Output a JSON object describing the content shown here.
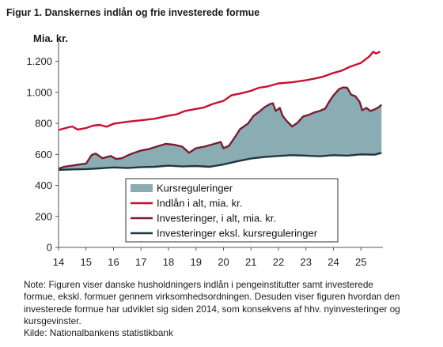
{
  "figure_title": "Figur 1. Danskernes indlån og frie investerede formue",
  "note": "Note: Figuren viser danske husholdningers indlån i pengeinstitutter samt investerede formue, ekskl. formuer gennem virksomhedsordningen. Desuden viser figuren hvordan den investerede formue har udviklet sig siden 2014, som konsekvens af hhv. nyinvesteringer og kursgevinster.",
  "source": "Kilde: Nationalbankens statistikbank",
  "colors": {
    "area": "#8aadb3",
    "deposits": "#c8102e",
    "investments_total": "#7b1d33",
    "investments_ex": "#1f3640",
    "axis": "#555555"
  },
  "chart_data": {
    "type": "line",
    "ylabel": "Mia. kr.",
    "xlabel": "",
    "ylim": [
      0,
      1300
    ],
    "yticks": [
      0,
      200,
      400,
      600,
      800,
      1000,
      1200
    ],
    "ytick_labels": [
      "0",
      "200",
      "400",
      "600",
      "800",
      "1.000",
      "1.200"
    ],
    "xlim": [
      14,
      25.8
    ],
    "xticks": [
      14,
      15,
      16,
      17,
      18,
      19,
      20,
      21,
      22,
      23,
      24,
      25
    ],
    "xtick_labels": [
      "14",
      "15",
      "16",
      "17",
      "18",
      "19",
      "20",
      "21",
      "22",
      "23",
      "24",
      "25"
    ],
    "grid": false,
    "legend_position": "center-bottom",
    "legend": [
      {
        "label": "Kursreguleringer",
        "kind": "area",
        "series": "area"
      },
      {
        "label": "Indlån i alt, mia. kr.",
        "kind": "line",
        "series": "deposits"
      },
      {
        "label": "Investeringer, i alt, mia. kr.",
        "kind": "line",
        "series": "investments_total"
      },
      {
        "label": "Investeringer eksl. kursreguleringer",
        "kind": "line",
        "series": "investments_ex"
      }
    ],
    "series": [
      {
        "key": "deposits",
        "name": "Indlån i alt, mia. kr.",
        "points": [
          [
            14.0,
            757
          ],
          [
            14.3,
            772
          ],
          [
            14.5,
            780
          ],
          [
            14.7,
            760
          ],
          [
            15.0,
            770
          ],
          [
            15.25,
            785
          ],
          [
            15.5,
            790
          ],
          [
            15.75,
            778
          ],
          [
            16.0,
            798
          ],
          [
            16.3,
            805
          ],
          [
            16.5,
            810
          ],
          [
            16.75,
            815
          ],
          [
            17.0,
            820
          ],
          [
            17.5,
            830
          ],
          [
            18.0,
            850
          ],
          [
            18.3,
            858
          ],
          [
            18.6,
            880
          ],
          [
            19.0,
            893
          ],
          [
            19.3,
            903
          ],
          [
            19.6,
            925
          ],
          [
            20.0,
            945
          ],
          [
            20.3,
            982
          ],
          [
            20.6,
            992
          ],
          [
            21.0,
            1010
          ],
          [
            21.3,
            1030
          ],
          [
            21.6,
            1038
          ],
          [
            22.0,
            1058
          ],
          [
            22.5,
            1065
          ],
          [
            23.0,
            1078
          ],
          [
            23.3,
            1088
          ],
          [
            23.6,
            1100
          ],
          [
            24.0,
            1125
          ],
          [
            24.3,
            1140
          ],
          [
            24.6,
            1165
          ],
          [
            25.0,
            1190
          ],
          [
            25.3,
            1230
          ],
          [
            25.45,
            1262
          ],
          [
            25.55,
            1250
          ],
          [
            25.7,
            1263
          ]
        ]
      },
      {
        "key": "investments_total",
        "name": "Investeringer, i alt, mia. kr.",
        "points": [
          [
            14.0,
            508
          ],
          [
            14.2,
            520
          ],
          [
            14.5,
            528
          ],
          [
            14.75,
            535
          ],
          [
            15.0,
            540
          ],
          [
            15.2,
            595
          ],
          [
            15.35,
            605
          ],
          [
            15.6,
            575
          ],
          [
            15.9,
            590
          ],
          [
            16.1,
            570
          ],
          [
            16.3,
            575
          ],
          [
            16.6,
            600
          ],
          [
            17.0,
            625
          ],
          [
            17.3,
            635
          ],
          [
            17.6,
            652
          ],
          [
            17.9,
            668
          ],
          [
            18.2,
            662
          ],
          [
            18.5,
            650
          ],
          [
            18.75,
            610
          ],
          [
            19.0,
            640
          ],
          [
            19.3,
            650
          ],
          [
            19.6,
            665
          ],
          [
            19.9,
            680
          ],
          [
            20.0,
            640
          ],
          [
            20.2,
            655
          ],
          [
            20.45,
            720
          ],
          [
            20.6,
            762
          ],
          [
            20.9,
            800
          ],
          [
            21.1,
            850
          ],
          [
            21.3,
            875
          ],
          [
            21.5,
            905
          ],
          [
            21.7,
            925
          ],
          [
            21.8,
            930
          ],
          [
            21.9,
            880
          ],
          [
            22.05,
            900
          ],
          [
            22.15,
            850
          ],
          [
            22.3,
            815
          ],
          [
            22.5,
            780
          ],
          [
            22.7,
            805
          ],
          [
            22.9,
            845
          ],
          [
            23.1,
            855
          ],
          [
            23.3,
            870
          ],
          [
            23.5,
            880
          ],
          [
            23.7,
            895
          ],
          [
            23.85,
            940
          ],
          [
            24.0,
            980
          ],
          [
            24.2,
            1020
          ],
          [
            24.35,
            1032
          ],
          [
            24.5,
            1030
          ],
          [
            24.65,
            985
          ],
          [
            24.8,
            975
          ],
          [
            24.95,
            940
          ],
          [
            25.05,
            885
          ],
          [
            25.2,
            900
          ],
          [
            25.35,
            880
          ],
          [
            25.5,
            890
          ],
          [
            25.65,
            905
          ],
          [
            25.75,
            920
          ]
        ]
      },
      {
        "key": "investments_ex",
        "name": "Investeringer eksl. kursreguleringer",
        "points": [
          [
            14.0,
            500
          ],
          [
            14.5,
            503
          ],
          [
            15.0,
            505
          ],
          [
            15.5,
            510
          ],
          [
            16.0,
            516
          ],
          [
            16.5,
            512
          ],
          [
            17.0,
            518
          ],
          [
            17.5,
            520
          ],
          [
            18.0,
            527
          ],
          [
            18.5,
            522
          ],
          [
            19.0,
            525
          ],
          [
            19.5,
            520
          ],
          [
            20.0,
            535
          ],
          [
            20.5,
            555
          ],
          [
            21.0,
            573
          ],
          [
            21.5,
            583
          ],
          [
            22.0,
            590
          ],
          [
            22.5,
            595
          ],
          [
            23.0,
            592
          ],
          [
            23.5,
            588
          ],
          [
            24.0,
            595
          ],
          [
            24.5,
            592
          ],
          [
            25.0,
            600
          ],
          [
            25.5,
            598
          ],
          [
            25.75,
            610
          ]
        ]
      }
    ]
  }
}
